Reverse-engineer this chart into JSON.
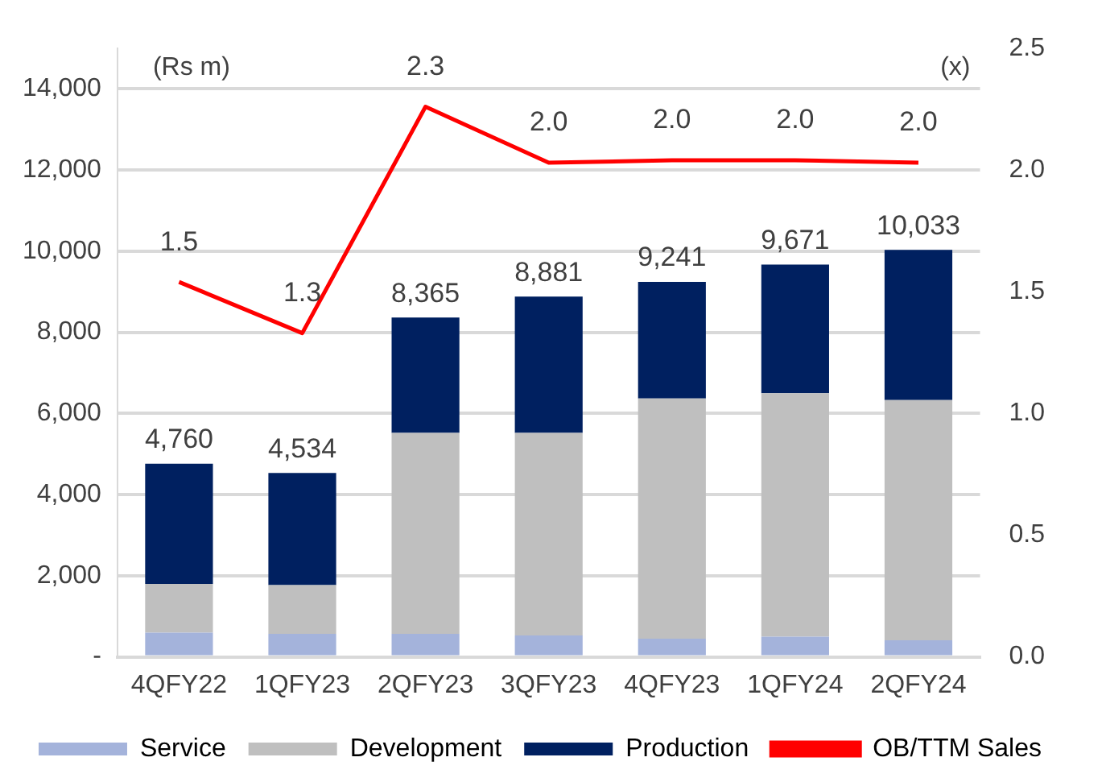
{
  "chart_data": {
    "type": "bar",
    "stacked": true,
    "categories": [
      "4QFY22",
      "1QFY23",
      "2QFY23",
      "3QFY23",
      "4QFY23",
      "1QFY24",
      "2QFY24"
    ],
    "series": [
      {
        "name": "Service",
        "color": "#a4b3db",
        "values": [
          600,
          570,
          570,
          530,
          450,
          500,
          410
        ]
      },
      {
        "name": "Development",
        "color": "#bfbfbf",
        "values": [
          1200,
          1200,
          4950,
          4990,
          5920,
          6000,
          5920
        ]
      },
      {
        "name": "Production",
        "color": "#002060",
        "values": [
          2960,
          2764,
          2845,
          3361,
          2871,
          3171,
          3703
        ]
      },
      {
        "name": "OB/TTM Sales",
        "type": "line",
        "axis": "y2",
        "color": "#ff0000",
        "values": [
          1.54,
          1.33,
          2.26,
          2.03,
          2.04,
          2.04,
          2.03
        ],
        "value_labels": [
          "1.5",
          "1.3",
          "2.3",
          "2.0",
          "2.0",
          "2.0",
          "2.0"
        ]
      }
    ],
    "totals": [
      "4,760",
      "4,534",
      "8,365",
      "8,881",
      "9,241",
      "9,671",
      "10,033"
    ],
    "ylabel": "(Rs m)",
    "y2label": "(x)",
    "ylim": [
      0,
      15000
    ],
    "yticks": [
      {
        "value": 0,
        "label": "-"
      },
      {
        "value": 2000,
        "label": "2,000"
      },
      {
        "value": 4000,
        "label": "4,000"
      },
      {
        "value": 6000,
        "label": "6,000"
      },
      {
        "value": 8000,
        "label": "8,000"
      },
      {
        "value": 10000,
        "label": "10,000"
      },
      {
        "value": 12000,
        "label": "12,000"
      },
      {
        "value": 14000,
        "label": "14,000"
      }
    ],
    "y2lim": [
      0,
      2.5
    ],
    "y2ticks": [
      {
        "value": 0,
        "label": "0.0"
      },
      {
        "value": 0.5,
        "label": "0.5"
      },
      {
        "value": 1,
        "label": "1.0"
      },
      {
        "value": 1.5,
        "label": "1.5"
      },
      {
        "value": 2,
        "label": "2.0"
      },
      {
        "value": 2.5,
        "label": "2.5"
      }
    ],
    "grid": "y",
    "legend": "bottom",
    "marker": "none"
  }
}
